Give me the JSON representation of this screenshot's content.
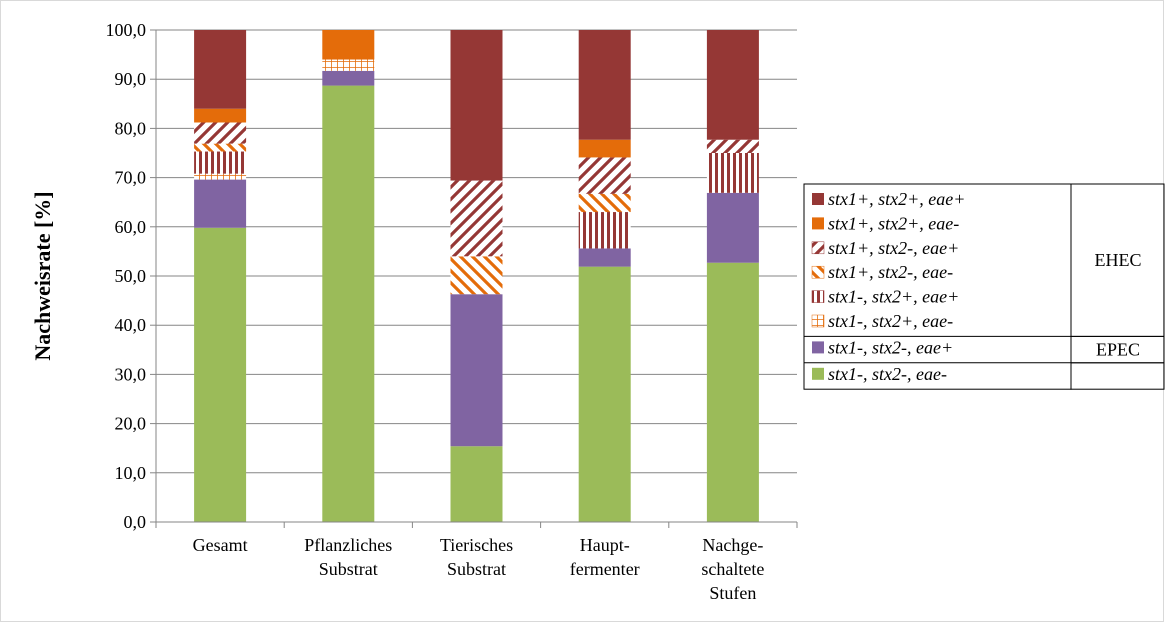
{
  "chart_data": {
    "type": "bar",
    "stacked": true,
    "ylabel": "Nachweisrate [%]",
    "ylim": [
      0,
      100
    ],
    "yticks": [
      "0,0",
      "10,0",
      "20,0",
      "30,0",
      "40,0",
      "50,0",
      "60,0",
      "70,0",
      "80,0",
      "90,0",
      "100,0"
    ],
    "grid": true,
    "legend_position": "right",
    "categories": [
      [
        "Gesamt"
      ],
      [
        "Pflanzliches",
        "Substrat"
      ],
      [
        "Tierisches",
        "Substrat"
      ],
      [
        "Haupt-",
        "fermenter"
      ],
      [
        "Nachge-",
        "schaltete",
        "Stufen"
      ]
    ],
    "series": [
      {
        "name": "stx1-, stx2-, eae-",
        "color": "#9bbb59",
        "pattern": "solid",
        "values": [
          59.8,
          88.7,
          15.4,
          51.9,
          52.7
        ]
      },
      {
        "name": "stx1-, stx2-, eae+",
        "color": "#8064a2",
        "pattern": "solid",
        "values": [
          9.8,
          3.0,
          30.9,
          3.7,
          14.2
        ]
      },
      {
        "name": "stx1-, stx2+, eae-",
        "color": "#e46c0a",
        "pattern": "grid",
        "values": [
          1.2,
          2.3,
          0.0,
          0.0,
          0.0
        ]
      },
      {
        "name": "stx1-, stx2+, eae+",
        "color": "#953735",
        "pattern": "vertical",
        "values": [
          4.5,
          0.0,
          0.0,
          7.4,
          8.1
        ]
      },
      {
        "name": "stx1+, stx2-, eae-",
        "color": "#e46c0a",
        "pattern": "diagonal-down",
        "values": [
          1.6,
          0.0,
          7.7,
          3.7,
          0.0
        ]
      },
      {
        "name": "stx1+, stx2-, eae+",
        "color": "#953735",
        "pattern": "diagonal-up",
        "values": [
          4.3,
          0.0,
          15.4,
          7.4,
          2.7
        ]
      },
      {
        "name": "stx1+, stx2+, eae-",
        "color": "#e46c0a",
        "pattern": "solid",
        "values": [
          2.8,
          6.0,
          0.0,
          3.6,
          0.0
        ]
      },
      {
        "name": "stx1+, stx2+, eae+",
        "color": "#953735",
        "pattern": "solid",
        "values": [
          16.0,
          0.0,
          30.6,
          22.3,
          22.3
        ]
      }
    ],
    "legend_groups": [
      {
        "label": "EHEC",
        "members": [
          "stx1+, stx2+, eae+",
          "stx1+, stx2+, eae-",
          "stx1+, stx2-, eae+",
          "stx1+, stx2-, eae-",
          "stx1-, stx2+, eae+",
          "stx1-, stx2+, eae-"
        ]
      },
      {
        "label": "EPEC",
        "members": [
          "stx1-, stx2-, eae+"
        ]
      },
      {
        "label": "",
        "members": [
          "stx1-, stx2-, eae-"
        ]
      }
    ]
  }
}
